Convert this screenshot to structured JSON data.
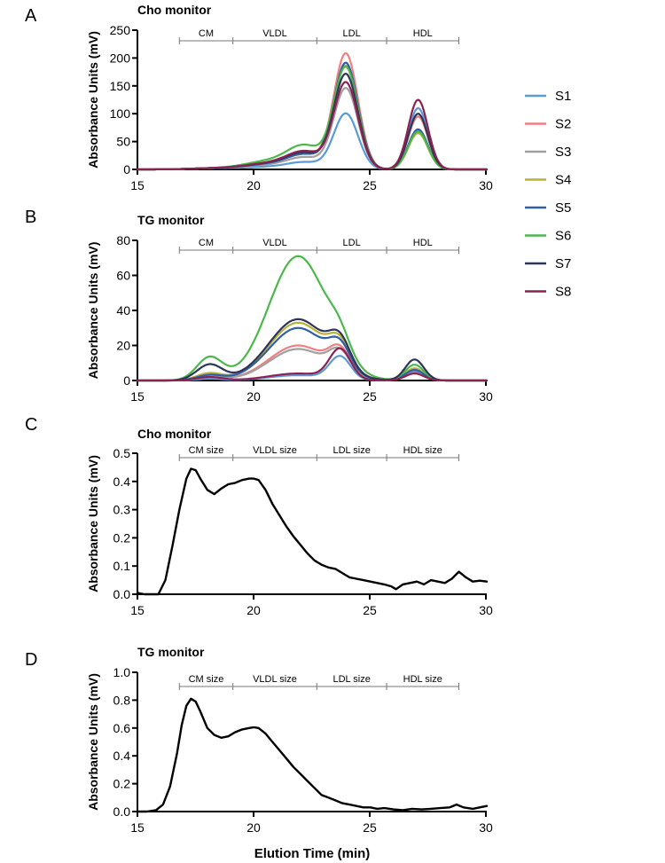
{
  "chart_data": [
    {
      "panel": "A",
      "type": "line",
      "title": "Cho monitor",
      "ylabel": "Absorbance Units (mV)",
      "xlim": [
        15,
        30
      ],
      "ylim": [
        0,
        250
      ],
      "xticks": [
        "15",
        "20",
        "25",
        "30"
      ],
      "yticks": [
        "0",
        "50",
        "100",
        "150",
        "200",
        "250"
      ],
      "fractions": [
        {
          "label": "CM",
          "start": 16.8,
          "end": 19.1
        },
        {
          "label": "VLDL",
          "start": 19.1,
          "end": 22.7
        },
        {
          "label": "LDL",
          "start": 22.7,
          "end": 25.7
        },
        {
          "label": "HDL",
          "start": 25.7,
          "end": 28.8
        }
      ],
      "series": [
        {
          "name": "S1",
          "color": "#5B9BD5",
          "shoulder": 12,
          "ldl": 100,
          "hdl": 110
        },
        {
          "name": "S2",
          "color": "#F08080",
          "shoulder": 25,
          "ldl": 207,
          "hdl": 95
        },
        {
          "name": "S3",
          "color": "#A0A0A0",
          "shoulder": 20,
          "ldl": 145,
          "hdl": 70
        },
        {
          "name": "S4",
          "color": "#B8B23A",
          "shoulder": 25,
          "ldl": 185,
          "hdl": 65
        },
        {
          "name": "S5",
          "color": "#2E5FA8",
          "shoulder": 25,
          "ldl": 190,
          "hdl": 72
        },
        {
          "name": "S6",
          "color": "#4CB84C",
          "shoulder": 40,
          "ldl": 182,
          "hdl": 68
        },
        {
          "name": "S7",
          "color": "#2F3557",
          "shoulder": 28,
          "ldl": 170,
          "hdl": 100
        },
        {
          "name": "S8",
          "color": "#8B2252",
          "shoulder": 30,
          "ldl": 155,
          "hdl": 125
        }
      ]
    },
    {
      "panel": "B",
      "type": "line",
      "title": "TG monitor",
      "ylabel": "Absorbance Units (mV)",
      "xlim": [
        15,
        30
      ],
      "ylim": [
        0,
        80
      ],
      "xticks": [
        "15",
        "20",
        "25",
        "30"
      ],
      "yticks": [
        "0",
        "20",
        "40",
        "60",
        "80"
      ],
      "fractions": [
        {
          "label": "CM",
          "start": 16.8,
          "end": 19.1
        },
        {
          "label": "VLDL",
          "start": 19.1,
          "end": 22.7
        },
        {
          "label": "LDL",
          "start": 22.7,
          "end": 25.7
        },
        {
          "label": "HDL",
          "start": 25.7,
          "end": 28.8
        }
      ],
      "series": [
        {
          "name": "S1",
          "color": "#5B9BD5",
          "cm": 1,
          "vldl": 3,
          "ldl": 13,
          "hdl": 5
        },
        {
          "name": "S2",
          "color": "#F08080",
          "cm": 4,
          "vldl": 20,
          "ldl": 13,
          "hdl": 6
        },
        {
          "name": "S3",
          "color": "#A0A0A0",
          "cm": 3,
          "vldl": 18,
          "ldl": 12,
          "hdl": 4
        },
        {
          "name": "S4",
          "color": "#B8B23A",
          "cm": 4,
          "vldl": 33,
          "ldl": 14,
          "hdl": 7
        },
        {
          "name": "S5",
          "color": "#2E5FA8",
          "cm": 3,
          "vldl": 30,
          "ldl": 13,
          "hdl": 6
        },
        {
          "name": "S6",
          "color": "#4CB84C",
          "cm": 13,
          "vldl": 71,
          "ldl": 10,
          "hdl": 9
        },
        {
          "name": "S7",
          "color": "#2F3557",
          "cm": 9,
          "vldl": 35,
          "ldl": 15,
          "hdl": 12
        },
        {
          "name": "S8",
          "color": "#8B2252",
          "cm": 2,
          "vldl": 4,
          "ldl": 17,
          "hdl": 4
        }
      ]
    },
    {
      "panel": "C",
      "type": "line",
      "title": "Cho monitor",
      "ylabel": "Absorbance Units (mV)",
      "xlim": [
        15,
        30
      ],
      "ylim": [
        0,
        0.5
      ],
      "xticks": [
        "15",
        "20",
        "25",
        "30"
      ],
      "yticks": [
        "0.0",
        "0.1",
        "0.2",
        "0.3",
        "0.4",
        "0.5"
      ],
      "fractions": [
        {
          "label": "CM size",
          "start": 16.8,
          "end": 19.1
        },
        {
          "label": "VLDL size",
          "start": 19.1,
          "end": 22.7
        },
        {
          "label": "LDL size",
          "start": 22.7,
          "end": 25.7
        },
        {
          "label": "HDL size",
          "start": 25.7,
          "end": 28.8
        }
      ],
      "series": [
        {
          "name": "size",
          "color": "#000000",
          "x": [
            15.0,
            15.3,
            15.6,
            15.9,
            16.2,
            16.5,
            16.8,
            17.1,
            17.3,
            17.5,
            17.7,
            18.0,
            18.3,
            18.6,
            18.9,
            19.2,
            19.5,
            19.8,
            20.0,
            20.2,
            20.5,
            20.8,
            21.1,
            21.4,
            21.7,
            22.0,
            22.3,
            22.6,
            22.9,
            23.2,
            23.5,
            23.8,
            24.1,
            24.4,
            24.7,
            25.0,
            25.3,
            25.6,
            25.9,
            26.1,
            26.4,
            26.7,
            27.0,
            27.3,
            27.6,
            27.9,
            28.2,
            28.5,
            28.8,
            29.1,
            29.4,
            29.7,
            30.0
          ],
          "y": [
            0.005,
            0.0,
            0.0,
            0.0,
            0.05,
            0.17,
            0.3,
            0.41,
            0.445,
            0.44,
            0.41,
            0.37,
            0.355,
            0.375,
            0.39,
            0.395,
            0.405,
            0.41,
            0.41,
            0.405,
            0.37,
            0.32,
            0.28,
            0.24,
            0.205,
            0.175,
            0.145,
            0.12,
            0.105,
            0.095,
            0.09,
            0.075,
            0.06,
            0.055,
            0.05,
            0.045,
            0.04,
            0.035,
            0.028,
            0.018,
            0.035,
            0.04,
            0.045,
            0.035,
            0.05,
            0.045,
            0.04,
            0.055,
            0.08,
            0.06,
            0.045,
            0.048,
            0.045
          ]
        }
      ]
    },
    {
      "panel": "D",
      "type": "line",
      "title": "TG monitor",
      "ylabel": "Absorbance Units (mV)",
      "xlabel": "Elution Time (min)",
      "xlim": [
        15,
        30
      ],
      "ylim": [
        0,
        1.0
      ],
      "xticks": [
        "15",
        "20",
        "25",
        "30"
      ],
      "yticks": [
        "0.0",
        "0.2",
        "0.4",
        "0.6",
        "0.8",
        "1.0"
      ],
      "fractions": [
        {
          "label": "CM size",
          "start": 16.8,
          "end": 19.1
        },
        {
          "label": "VLDL size",
          "start": 19.1,
          "end": 22.7
        },
        {
          "label": "LDL size",
          "start": 22.7,
          "end": 25.7
        },
        {
          "label": "HDL size",
          "start": 25.7,
          "end": 28.8
        }
      ],
      "series": [
        {
          "name": "size",
          "color": "#000000",
          "x": [
            15.0,
            15.4,
            15.8,
            16.1,
            16.4,
            16.7,
            16.9,
            17.1,
            17.3,
            17.5,
            17.7,
            18.0,
            18.3,
            18.6,
            18.9,
            19.2,
            19.5,
            19.8,
            20.0,
            20.2,
            20.5,
            20.8,
            21.1,
            21.4,
            21.7,
            22.0,
            22.3,
            22.6,
            22.9,
            23.2,
            23.5,
            23.8,
            24.1,
            24.4,
            24.7,
            25.0,
            25.3,
            25.6,
            26.0,
            26.4,
            26.8,
            27.2,
            27.6,
            28.0,
            28.4,
            28.7,
            29.0,
            29.4,
            29.7,
            30.0
          ],
          "y": [
            0.0,
            0.0,
            0.01,
            0.05,
            0.18,
            0.42,
            0.62,
            0.76,
            0.81,
            0.79,
            0.72,
            0.6,
            0.55,
            0.53,
            0.54,
            0.57,
            0.59,
            0.6,
            0.605,
            0.6,
            0.56,
            0.5,
            0.44,
            0.38,
            0.32,
            0.27,
            0.22,
            0.17,
            0.12,
            0.1,
            0.08,
            0.06,
            0.05,
            0.04,
            0.03,
            0.03,
            0.02,
            0.025,
            0.015,
            0.01,
            0.02,
            0.015,
            0.02,
            0.025,
            0.03,
            0.05,
            0.03,
            0.02,
            0.03,
            0.04
          ]
        }
      ]
    }
  ],
  "legend": [
    {
      "label": "S1",
      "color": "#5B9BD5"
    },
    {
      "label": "S2",
      "color": "#F08080"
    },
    {
      "label": "S3",
      "color": "#A0A0A0"
    },
    {
      "label": "S4",
      "color": "#B8B23A"
    },
    {
      "label": "S5",
      "color": "#2E5FA8"
    },
    {
      "label": "S6",
      "color": "#4CB84C"
    },
    {
      "label": "S7",
      "color": "#2F3557"
    },
    {
      "label": "S8",
      "color": "#8B2252"
    }
  ]
}
